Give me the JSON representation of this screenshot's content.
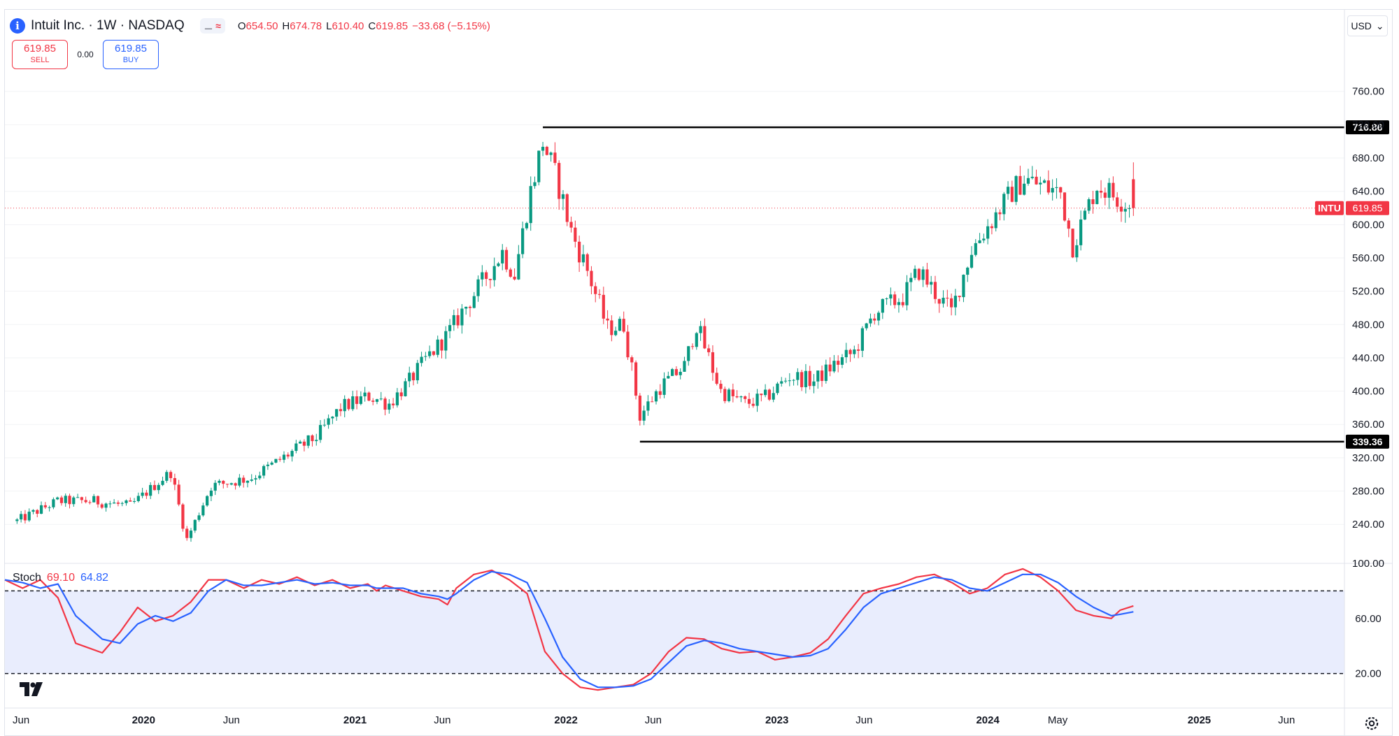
{
  "header": {
    "symbol_title": "Intuit Inc. · 1W · NASDAQ",
    "ohlc": {
      "open_label": "O",
      "open": "654.50",
      "high_label": "H",
      "high": "674.78",
      "low_label": "L",
      "low": "610.40",
      "close_label": "C",
      "close": "619.85",
      "change": "−33.68 (−5.15%)"
    },
    "indicator_toggle_symbol": "≈",
    "eye_icon": "eye-icon"
  },
  "trade": {
    "sell_price": "619.85",
    "sell_label": "SELL",
    "spread": "0.00",
    "buy_price": "619.85",
    "buy_label": "BUY"
  },
  "currency": {
    "label": "USD",
    "icon": "chevron-down-icon"
  },
  "stoch_legend": {
    "name": "Stoch",
    "k_value": "69.10",
    "d_value": "64.82"
  },
  "colors": {
    "up": "#089981",
    "down": "#f23645",
    "stoch_k": "#f23645",
    "stoch_d": "#2962ff",
    "stoch_band": "#e9edfd",
    "accent": "#2962ff"
  },
  "chart_data": [
    {
      "type": "candlestick",
      "price_axis": {
        "ticks": [
          "760.00",
          "720.00",
          "680.00",
          "640.00",
          "600.00",
          "560.00",
          "520.00",
          "480.00",
          "440.00",
          "400.00",
          "360.00",
          "320.00",
          "280.00",
          "240.00"
        ],
        "range": [
          194,
          790
        ]
      },
      "time_axis": {
        "ticks": [
          "Jun",
          "2020",
          "Jun",
          "2021",
          "Jun",
          "2022",
          "Jun",
          "2023",
          "Jun",
          "2024",
          "May",
          "2025",
          "Jun"
        ],
        "range": [
          "2019-05",
          "2025-08"
        ]
      },
      "last_price_label": {
        "symbol": "INTU",
        "value": "619.85"
      },
      "horizontal_levels": [
        {
          "label": "716.86",
          "value": 716.86,
          "start": "2021-11"
        },
        {
          "label": "339.36",
          "value": 339.36,
          "start": "2022-05"
        }
      ],
      "anchors": [
        [
          "2019-05-27",
          244
        ],
        [
          "2019-08-05",
          268
        ],
        [
          "2019-10-07",
          268
        ],
        [
          "2019-12-09",
          262
        ],
        [
          "2020-02-17",
          303
        ],
        [
          "2020-03-16",
          222
        ],
        [
          "2020-04-27",
          286
        ],
        [
          "2020-07-06",
          296
        ],
        [
          "2020-09-21",
          330
        ],
        [
          "2020-10-26",
          345
        ],
        [
          "2020-12-07",
          380
        ],
        [
          "2021-01-25",
          394
        ],
        [
          "2021-03-01",
          385
        ],
        [
          "2021-04-05",
          412
        ],
        [
          "2021-05-03",
          438
        ],
        [
          "2021-06-07",
          465
        ],
        [
          "2021-07-05",
          495
        ],
        [
          "2021-08-16",
          538
        ],
        [
          "2021-09-13",
          567
        ],
        [
          "2021-10-04",
          540
        ],
        [
          "2021-11-01",
          640
        ],
        [
          "2021-11-22",
          700
        ],
        [
          "2021-12-20",
          645
        ],
        [
          "2022-01-10",
          592
        ],
        [
          "2022-02-07",
          545
        ],
        [
          "2022-03-14",
          475
        ],
        [
          "2022-04-11",
          480
        ],
        [
          "2022-05-09",
          370
        ],
        [
          "2022-06-13",
          405
        ],
        [
          "2022-07-25",
          430
        ],
        [
          "2022-08-15",
          480
        ],
        [
          "2022-09-26",
          400
        ],
        [
          "2022-11-07",
          385
        ],
        [
          "2022-12-12",
          392
        ],
        [
          "2023-01-23",
          418
        ],
        [
          "2023-03-06",
          412
        ],
        [
          "2023-04-10",
          432
        ],
        [
          "2023-05-15",
          447
        ],
        [
          "2023-06-19",
          495
        ],
        [
          "2023-08-07",
          513
        ],
        [
          "2023-09-04",
          545
        ],
        [
          "2023-10-02",
          518
        ],
        [
          "2023-10-30",
          495
        ],
        [
          "2023-12-04",
          570
        ],
        [
          "2024-02-12",
          640
        ],
        [
          "2024-03-04",
          655
        ],
        [
          "2024-05-06",
          638
        ],
        [
          "2024-05-27",
          575
        ],
        [
          "2024-07-08",
          648
        ],
        [
          "2024-08-19",
          630
        ],
        [
          "2024-09-09",
          619.85
        ]
      ]
    },
    {
      "type": "line",
      "title": "Stoch",
      "y_axis": {
        "ticks": [
          "100.00",
          "60.00",
          "20.00"
        ],
        "range": [
          0,
          100
        ]
      },
      "reference_lines": [
        80,
        20
      ],
      "series": [
        {
          "name": "%K",
          "color": "#f23645",
          "values": [
            [
              0,
              88
            ],
            [
              0.04,
              82
            ],
            [
              0.08,
              88
            ],
            [
              0.12,
              75
            ],
            [
              0.16,
              42
            ],
            [
              0.22,
              35
            ],
            [
              0.26,
              50
            ],
            [
              0.3,
              68
            ],
            [
              0.34,
              58
            ],
            [
              0.38,
              62
            ],
            [
              0.42,
              72
            ],
            [
              0.46,
              88
            ],
            [
              0.5,
              88
            ],
            [
              0.54,
              82
            ],
            [
              0.58,
              88
            ],
            [
              0.62,
              85
            ],
            [
              0.66,
              90
            ],
            [
              0.7,
              84
            ],
            [
              0.74,
              88
            ],
            [
              0.78,
              82
            ],
            [
              0.82,
              85
            ],
            [
              0.84,
              80
            ],
            [
              0.86,
              84
            ],
            [
              0.9,
              80
            ],
            [
              0.92,
              78
            ],
            [
              0.94,
              76
            ],
            [
              0.98,
              74
            ],
            [
              1.0,
              70
            ],
            [
              1.02,
              82
            ],
            [
              1.06,
              92
            ],
            [
              1.1,
              95
            ],
            [
              1.14,
              88
            ],
            [
              1.18,
              78
            ],
            [
              1.22,
              36
            ],
            [
              1.26,
              20
            ],
            [
              1.3,
              10
            ],
            [
              1.34,
              8
            ],
            [
              1.38,
              10
            ],
            [
              1.42,
              12
            ],
            [
              1.46,
              20
            ],
            [
              1.5,
              36
            ],
            [
              1.54,
              46
            ],
            [
              1.58,
              45
            ],
            [
              1.62,
              38
            ],
            [
              1.66,
              35
            ],
            [
              1.7,
              36
            ],
            [
              1.74,
              30
            ],
            [
              1.78,
              32
            ],
            [
              1.82,
              35
            ],
            [
              1.86,
              45
            ],
            [
              1.9,
              62
            ],
            [
              1.94,
              78
            ],
            [
              1.98,
              82
            ],
            [
              2.02,
              85
            ],
            [
              2.06,
              90
            ],
            [
              2.1,
              92
            ],
            [
              2.14,
              86
            ],
            [
              2.18,
              78
            ],
            [
              2.22,
              82
            ],
            [
              2.26,
              92
            ],
            [
              2.3,
              96
            ],
            [
              2.34,
              90
            ],
            [
              2.38,
              80
            ],
            [
              2.42,
              66
            ],
            [
              2.46,
              62
            ],
            [
              2.5,
              60
            ],
            [
              2.52,
              66
            ],
            [
              2.55,
              69.1
            ]
          ]
        },
        {
          "name": "%D",
          "color": "#2962ff",
          "values": [
            [
              0,
              88
            ],
            [
              0.04,
              86
            ],
            [
              0.08,
              82
            ],
            [
              0.12,
              85
            ],
            [
              0.16,
              62
            ],
            [
              0.22,
              45
            ],
            [
              0.26,
              42
            ],
            [
              0.3,
              56
            ],
            [
              0.34,
              62
            ],
            [
              0.38,
              58
            ],
            [
              0.42,
              64
            ],
            [
              0.46,
              80
            ],
            [
              0.5,
              88
            ],
            [
              0.54,
              84
            ],
            [
              0.58,
              84
            ],
            [
              0.62,
              86
            ],
            [
              0.66,
              88
            ],
            [
              0.7,
              85
            ],
            [
              0.74,
              86
            ],
            [
              0.78,
              84
            ],
            [
              0.82,
              84
            ],
            [
              0.84,
              82
            ],
            [
              0.86,
              82
            ],
            [
              0.9,
              82
            ],
            [
              0.92,
              80
            ],
            [
              0.94,
              78
            ],
            [
              0.98,
              76
            ],
            [
              1.0,
              74
            ],
            [
              1.02,
              78
            ],
            [
              1.06,
              88
            ],
            [
              1.1,
              94
            ],
            [
              1.14,
              92
            ],
            [
              1.18,
              86
            ],
            [
              1.22,
              60
            ],
            [
              1.26,
              32
            ],
            [
              1.3,
              16
            ],
            [
              1.34,
              10
            ],
            [
              1.38,
              10
            ],
            [
              1.42,
              11
            ],
            [
              1.46,
              16
            ],
            [
              1.5,
              28
            ],
            [
              1.54,
              40
            ],
            [
              1.58,
              44
            ],
            [
              1.62,
              42
            ],
            [
              1.66,
              38
            ],
            [
              1.7,
              36
            ],
            [
              1.74,
              34
            ],
            [
              1.78,
              32
            ],
            [
              1.82,
              33
            ],
            [
              1.86,
              38
            ],
            [
              1.9,
              52
            ],
            [
              1.94,
              68
            ],
            [
              1.98,
              78
            ],
            [
              2.02,
              82
            ],
            [
              2.06,
              86
            ],
            [
              2.1,
              90
            ],
            [
              2.14,
              88
            ],
            [
              2.18,
              82
            ],
            [
              2.22,
              80
            ],
            [
              2.26,
              86
            ],
            [
              2.3,
              92
            ],
            [
              2.34,
              92
            ],
            [
              2.38,
              86
            ],
            [
              2.42,
              76
            ],
            [
              2.46,
              68
            ],
            [
              2.5,
              62
            ],
            [
              2.52,
              63
            ],
            [
              2.55,
              64.82
            ]
          ]
        }
      ]
    }
  ]
}
